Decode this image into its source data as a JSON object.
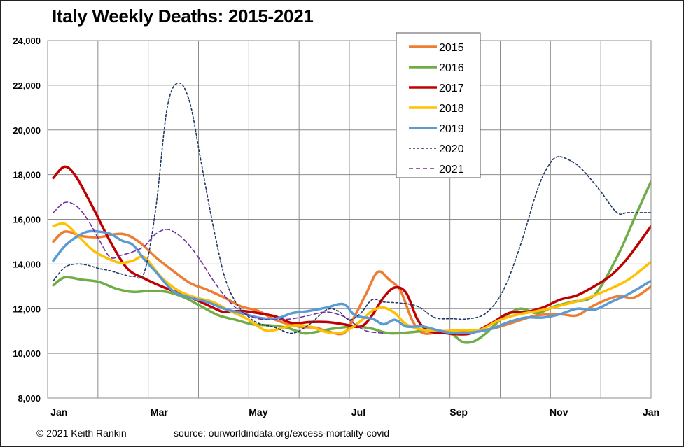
{
  "title": "Italy Weekly Deaths: 2015-2021",
  "footer": {
    "copyright": "© 2021 Keith Rankin",
    "source": "source:  ourworldindata.org/excess-mortality-covid"
  },
  "chart_data": {
    "type": "line",
    "xlabel": "",
    "ylabel": "",
    "x_unit": "week",
    "xlim": [
      0,
      53
    ],
    "ylim": [
      8000,
      24000
    ],
    "yticks": [
      8000,
      10000,
      12000,
      14000,
      16000,
      18000,
      20000,
      22000,
      24000
    ],
    "ytick_labels": [
      "8,000",
      "10,000",
      "12,000",
      "14,000",
      "16,000",
      "18,000",
      "20,000",
      "22,000",
      "24,000"
    ],
    "xticks": [
      {
        "label": "Jan",
        "week": 1
      },
      {
        "label": "Mar",
        "week": 9.8
      },
      {
        "label": "May",
        "week": 18.5
      },
      {
        "label": "Jul",
        "week": 27.3
      },
      {
        "label": "Sep",
        "week": 36.1
      },
      {
        "label": "Nov",
        "week": 44.9
      },
      {
        "label": "Jan",
        "week": 53
      }
    ],
    "grid": true,
    "legend": "top-center",
    "series": [
      {
        "name": "2015",
        "color": "#ED7D31",
        "dash": "solid",
        "width": 3.5,
        "points": [
          [
            0.5,
            15000
          ],
          [
            1.5,
            15450
          ],
          [
            3,
            15250
          ],
          [
            4.5,
            15200
          ],
          [
            6.5,
            15350
          ],
          [
            8,
            15000
          ],
          [
            9.5,
            14300
          ],
          [
            11,
            13700
          ],
          [
            12.5,
            13150
          ],
          [
            14,
            12850
          ],
          [
            15.5,
            12500
          ],
          [
            17,
            12100
          ],
          [
            18.5,
            11900
          ],
          [
            20,
            11500
          ],
          [
            22,
            11200
          ],
          [
            23.5,
            11150
          ],
          [
            24.5,
            11000
          ],
          [
            26,
            10900
          ],
          [
            27,
            11700
          ],
          [
            28,
            12700
          ],
          [
            29,
            13650
          ],
          [
            30,
            13300
          ],
          [
            31,
            12800
          ],
          [
            32,
            11500
          ],
          [
            33,
            10900
          ],
          [
            35,
            11000
          ],
          [
            37,
            11000
          ],
          [
            39,
            11100
          ],
          [
            41,
            11400
          ],
          [
            43,
            11700
          ],
          [
            45,
            11750
          ],
          [
            46.5,
            11700
          ],
          [
            48,
            12150
          ],
          [
            50,
            12550
          ],
          [
            51.5,
            12500
          ],
          [
            53,
            13000
          ]
        ]
      },
      {
        "name": "2016",
        "color": "#70AD47",
        "dash": "solid",
        "width": 3.5,
        "points": [
          [
            0.5,
            13050
          ],
          [
            1.5,
            13400
          ],
          [
            3,
            13300
          ],
          [
            4.5,
            13200
          ],
          [
            6,
            12900
          ],
          [
            7.5,
            12750
          ],
          [
            9,
            12800
          ],
          [
            10.5,
            12750
          ],
          [
            12,
            12500
          ],
          [
            13.5,
            12100
          ],
          [
            15,
            11700
          ],
          [
            16.5,
            11500
          ],
          [
            18,
            11300
          ],
          [
            19.5,
            11250
          ],
          [
            21,
            11150
          ],
          [
            22.5,
            10900
          ],
          [
            23.5,
            10950
          ],
          [
            25,
            11100
          ],
          [
            27,
            11200
          ],
          [
            28.5,
            11100
          ],
          [
            30,
            10900
          ],
          [
            32,
            10950
          ],
          [
            34,
            11050
          ],
          [
            35.5,
            10850
          ],
          [
            36.5,
            10500
          ],
          [
            37.5,
            10550
          ],
          [
            38.5,
            10900
          ],
          [
            40,
            11600
          ],
          [
            41.5,
            12000
          ],
          [
            43,
            11800
          ],
          [
            44.5,
            12100
          ],
          [
            46,
            12300
          ],
          [
            48,
            12600
          ],
          [
            50,
            14300
          ],
          [
            51.5,
            16000
          ],
          [
            53,
            17700
          ]
        ]
      },
      {
        "name": "2017",
        "color": "#C00000",
        "dash": "solid",
        "width": 3.5,
        "points": [
          [
            0.5,
            17850
          ],
          [
            1.5,
            18350
          ],
          [
            2.5,
            17900
          ],
          [
            4,
            16500
          ],
          [
            5.5,
            15000
          ],
          [
            7,
            13800
          ],
          [
            8.5,
            13350
          ],
          [
            10,
            13000
          ],
          [
            11.5,
            12700
          ],
          [
            13,
            12400
          ],
          [
            14.5,
            12050
          ],
          [
            15.5,
            11850
          ],
          [
            17,
            11900
          ],
          [
            18.5,
            11800
          ],
          [
            20,
            11650
          ],
          [
            21.5,
            11350
          ],
          [
            23,
            11400
          ],
          [
            24.5,
            11400
          ],
          [
            26,
            11300
          ],
          [
            27.5,
            11200
          ],
          [
            28.5,
            11700
          ],
          [
            29.5,
            12500
          ],
          [
            30.5,
            12950
          ],
          [
            31.5,
            12700
          ],
          [
            32.5,
            11500
          ],
          [
            33.5,
            11000
          ],
          [
            35,
            10900
          ],
          [
            36.5,
            10850
          ],
          [
            37.5,
            10950
          ],
          [
            39,
            11350
          ],
          [
            40.5,
            11800
          ],
          [
            42,
            11850
          ],
          [
            43.5,
            12050
          ],
          [
            45,
            12400
          ],
          [
            46.5,
            12600
          ],
          [
            48,
            13000
          ],
          [
            49.5,
            13500
          ],
          [
            51,
            14300
          ],
          [
            53,
            15700
          ]
        ]
      },
      {
        "name": "2018",
        "color": "#FFC000",
        "dash": "solid",
        "width": 3.5,
        "points": [
          [
            0.5,
            15700
          ],
          [
            1.5,
            15800
          ],
          [
            2.5,
            15350
          ],
          [
            4,
            14600
          ],
          [
            5.5,
            14200
          ],
          [
            6.5,
            14050
          ],
          [
            7.5,
            14150
          ],
          [
            8.5,
            14300
          ],
          [
            10,
            13400
          ],
          [
            11.5,
            12800
          ],
          [
            13,
            12500
          ],
          [
            14.5,
            12300
          ],
          [
            16,
            11900
          ],
          [
            17.5,
            11550
          ],
          [
            19,
            11050
          ],
          [
            20,
            11050
          ],
          [
            21.5,
            11250
          ],
          [
            23,
            11200
          ],
          [
            24.5,
            10950
          ],
          [
            26,
            10950
          ],
          [
            27.5,
            11450
          ],
          [
            28.5,
            11900
          ],
          [
            29.5,
            12050
          ],
          [
            30.5,
            11800
          ],
          [
            31.5,
            11300
          ],
          [
            33,
            11050
          ],
          [
            35,
            11000
          ],
          [
            36.5,
            11050
          ],
          [
            38,
            11050
          ],
          [
            39.5,
            11450
          ],
          [
            41,
            11700
          ],
          [
            42.5,
            11850
          ],
          [
            44,
            12000
          ],
          [
            45.5,
            12200
          ],
          [
            47,
            12400
          ],
          [
            49,
            12800
          ],
          [
            51,
            13300
          ],
          [
            53,
            14100
          ]
        ]
      },
      {
        "name": "2019",
        "color": "#5B9BD5",
        "dash": "solid",
        "width": 3.5,
        "points": [
          [
            0.5,
            14150
          ],
          [
            1.5,
            14800
          ],
          [
            2.5,
            15200
          ],
          [
            3.5,
            15450
          ],
          [
            4.5,
            15450
          ],
          [
            5.5,
            15350
          ],
          [
            6.5,
            15050
          ],
          [
            7.5,
            14850
          ],
          [
            8.5,
            14200
          ],
          [
            9.5,
            13650
          ],
          [
            11,
            12800
          ],
          [
            12.5,
            12500
          ],
          [
            14,
            12300
          ],
          [
            15.5,
            12000
          ],
          [
            17,
            11800
          ],
          [
            18.5,
            11600
          ],
          [
            20,
            11550
          ],
          [
            21.5,
            11800
          ],
          [
            23,
            11900
          ],
          [
            24.5,
            12050
          ],
          [
            26,
            12200
          ],
          [
            27,
            11700
          ],
          [
            28.5,
            11550
          ],
          [
            29.5,
            11300
          ],
          [
            30.5,
            11500
          ],
          [
            31.5,
            11200
          ],
          [
            33,
            11200
          ],
          [
            34.5,
            11000
          ],
          [
            36,
            10900
          ],
          [
            37.5,
            10950
          ],
          [
            39,
            11100
          ],
          [
            40.5,
            11400
          ],
          [
            42,
            11600
          ],
          [
            43.5,
            11600
          ],
          [
            45,
            11750
          ],
          [
            46.5,
            12000
          ],
          [
            48,
            11950
          ],
          [
            49.5,
            12300
          ],
          [
            51,
            12650
          ],
          [
            53,
            13250
          ]
        ]
      },
      {
        "name": "2020",
        "color": "#1F3864",
        "dash": "3,3",
        "width": 1.6,
        "points": [
          [
            0.5,
            13250
          ],
          [
            1.5,
            13850
          ],
          [
            2.5,
            14000
          ],
          [
            3.5,
            13950
          ],
          [
            4.5,
            13800
          ],
          [
            5.5,
            13700
          ],
          [
            6.5,
            13550
          ],
          [
            7.5,
            13450
          ],
          [
            8.5,
            13650
          ],
          [
            9.5,
            16500
          ],
          [
            10.5,
            21000
          ],
          [
            11.5,
            22100
          ],
          [
            12.5,
            21200
          ],
          [
            13.5,
            18500
          ],
          [
            14.5,
            15800
          ],
          [
            15.5,
            13500
          ],
          [
            16.5,
            12300
          ],
          [
            17.5,
            11700
          ],
          [
            18.5,
            11350
          ],
          [
            20,
            11150
          ],
          [
            21.5,
            10900
          ],
          [
            23,
            11300
          ],
          [
            24.5,
            11950
          ],
          [
            25.5,
            11900
          ],
          [
            26.5,
            11500
          ],
          [
            27.5,
            11800
          ],
          [
            28.5,
            12400
          ],
          [
            29.5,
            12300
          ],
          [
            31,
            12250
          ],
          [
            32.5,
            12100
          ],
          [
            34,
            11600
          ],
          [
            35.5,
            11550
          ],
          [
            37,
            11550
          ],
          [
            38.5,
            11800
          ],
          [
            40,
            12800
          ],
          [
            41.5,
            14800
          ],
          [
            43,
            17300
          ],
          [
            44,
            18400
          ],
          [
            44.8,
            18800
          ],
          [
            46,
            18600
          ],
          [
            47,
            18200
          ],
          [
            48.5,
            17300
          ],
          [
            50,
            16300
          ],
          [
            51,
            16300
          ],
          [
            53,
            16300
          ]
        ]
      },
      {
        "name": "2021",
        "color": "#7030A0",
        "dash": "6,4",
        "width": 1.6,
        "points": [
          [
            0.5,
            16300
          ],
          [
            1.5,
            16750
          ],
          [
            2.5,
            16600
          ],
          [
            3.5,
            16000
          ],
          [
            4.5,
            15100
          ],
          [
            5.5,
            14300
          ],
          [
            6.5,
            14400
          ],
          [
            7.5,
            14550
          ],
          [
            8.5,
            14800
          ],
          [
            9.5,
            15350
          ],
          [
            10.5,
            15550
          ],
          [
            11.5,
            15300
          ],
          [
            12.5,
            14800
          ],
          [
            13.5,
            14100
          ],
          [
            14.5,
            13300
          ],
          [
            15.5,
            12600
          ],
          [
            16.5,
            12050
          ],
          [
            17.5,
            11750
          ],
          [
            18.5,
            11550
          ],
          [
            20,
            11500
          ],
          [
            21.5,
            11550
          ],
          [
            23,
            11700
          ],
          [
            24.5,
            11850
          ],
          [
            26,
            11650
          ],
          [
            27,
            11300
          ],
          [
            28,
            11000
          ],
          [
            29.5,
            10900
          ]
        ]
      }
    ]
  }
}
